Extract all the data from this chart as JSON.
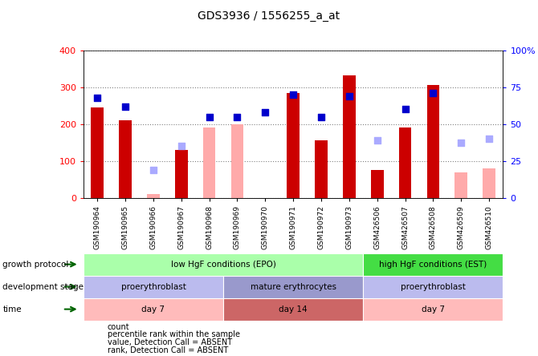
{
  "title": "GDS3936 / 1556255_a_at",
  "samples": [
    "GSM190964",
    "GSM190965",
    "GSM190966",
    "GSM190967",
    "GSM190968",
    "GSM190969",
    "GSM190970",
    "GSM190971",
    "GSM190972",
    "GSM190973",
    "GSM426506",
    "GSM426507",
    "GSM426508",
    "GSM426509",
    "GSM426510"
  ],
  "count_values": [
    245,
    210,
    null,
    130,
    null,
    null,
    null,
    285,
    155,
    332,
    75,
    190,
    305,
    null,
    null
  ],
  "count_absent": [
    null,
    null,
    10,
    null,
    190,
    200,
    null,
    null,
    null,
    null,
    null,
    null,
    null,
    70,
    80
  ],
  "rank_present": [
    270,
    248,
    null,
    null,
    220,
    220,
    232,
    280,
    220,
    275,
    null,
    240,
    285,
    null,
    null
  ],
  "rank_absent": [
    null,
    null,
    75,
    140,
    null,
    null,
    null,
    null,
    null,
    null,
    155,
    null,
    null,
    150,
    160
  ],
  "ylim_left": [
    0,
    400
  ],
  "ylim_right": [
    0,
    100
  ],
  "yticks_left": [
    0,
    100,
    200,
    300,
    400
  ],
  "yticks_right": [
    0,
    25,
    50,
    75,
    100
  ],
  "bar_color_count": "#cc0000",
  "bar_color_absent": "#ffaaaa",
  "dot_color_rank_present": "#0000cc",
  "dot_color_rank_absent": "#aaaaff",
  "growth_protocol_groups": [
    {
      "label": "low HgF conditions (EPO)",
      "start": 0,
      "end": 9,
      "color": "#aaffaa"
    },
    {
      "label": "high HgF conditions (EST)",
      "start": 10,
      "end": 14,
      "color": "#44dd44"
    }
  ],
  "development_stage_groups": [
    {
      "label": "proerythroblast",
      "start": 0,
      "end": 4,
      "color": "#bbbbee"
    },
    {
      "label": "mature erythrocytes",
      "start": 5,
      "end": 9,
      "color": "#9999cc"
    },
    {
      "label": "proerythroblast",
      "start": 10,
      "end": 14,
      "color": "#bbbbee"
    }
  ],
  "time_groups": [
    {
      "label": "day 7",
      "start": 0,
      "end": 4,
      "color": "#ffbbbb"
    },
    {
      "label": "day 14",
      "start": 5,
      "end": 9,
      "color": "#cc6666"
    },
    {
      "label": "day 7",
      "start": 10,
      "end": 14,
      "color": "#ffbbbb"
    }
  ],
  "row_labels": [
    "growth protocol",
    "development stage",
    "time"
  ],
  "legend_items": [
    {
      "label": "count",
      "color": "#cc0000"
    },
    {
      "label": "percentile rank within the sample",
      "color": "#0000cc"
    },
    {
      "label": "value, Detection Call = ABSENT",
      "color": "#ffaaaa"
    },
    {
      "label": "rank, Detection Call = ABSENT",
      "color": "#aaaaff"
    }
  ]
}
